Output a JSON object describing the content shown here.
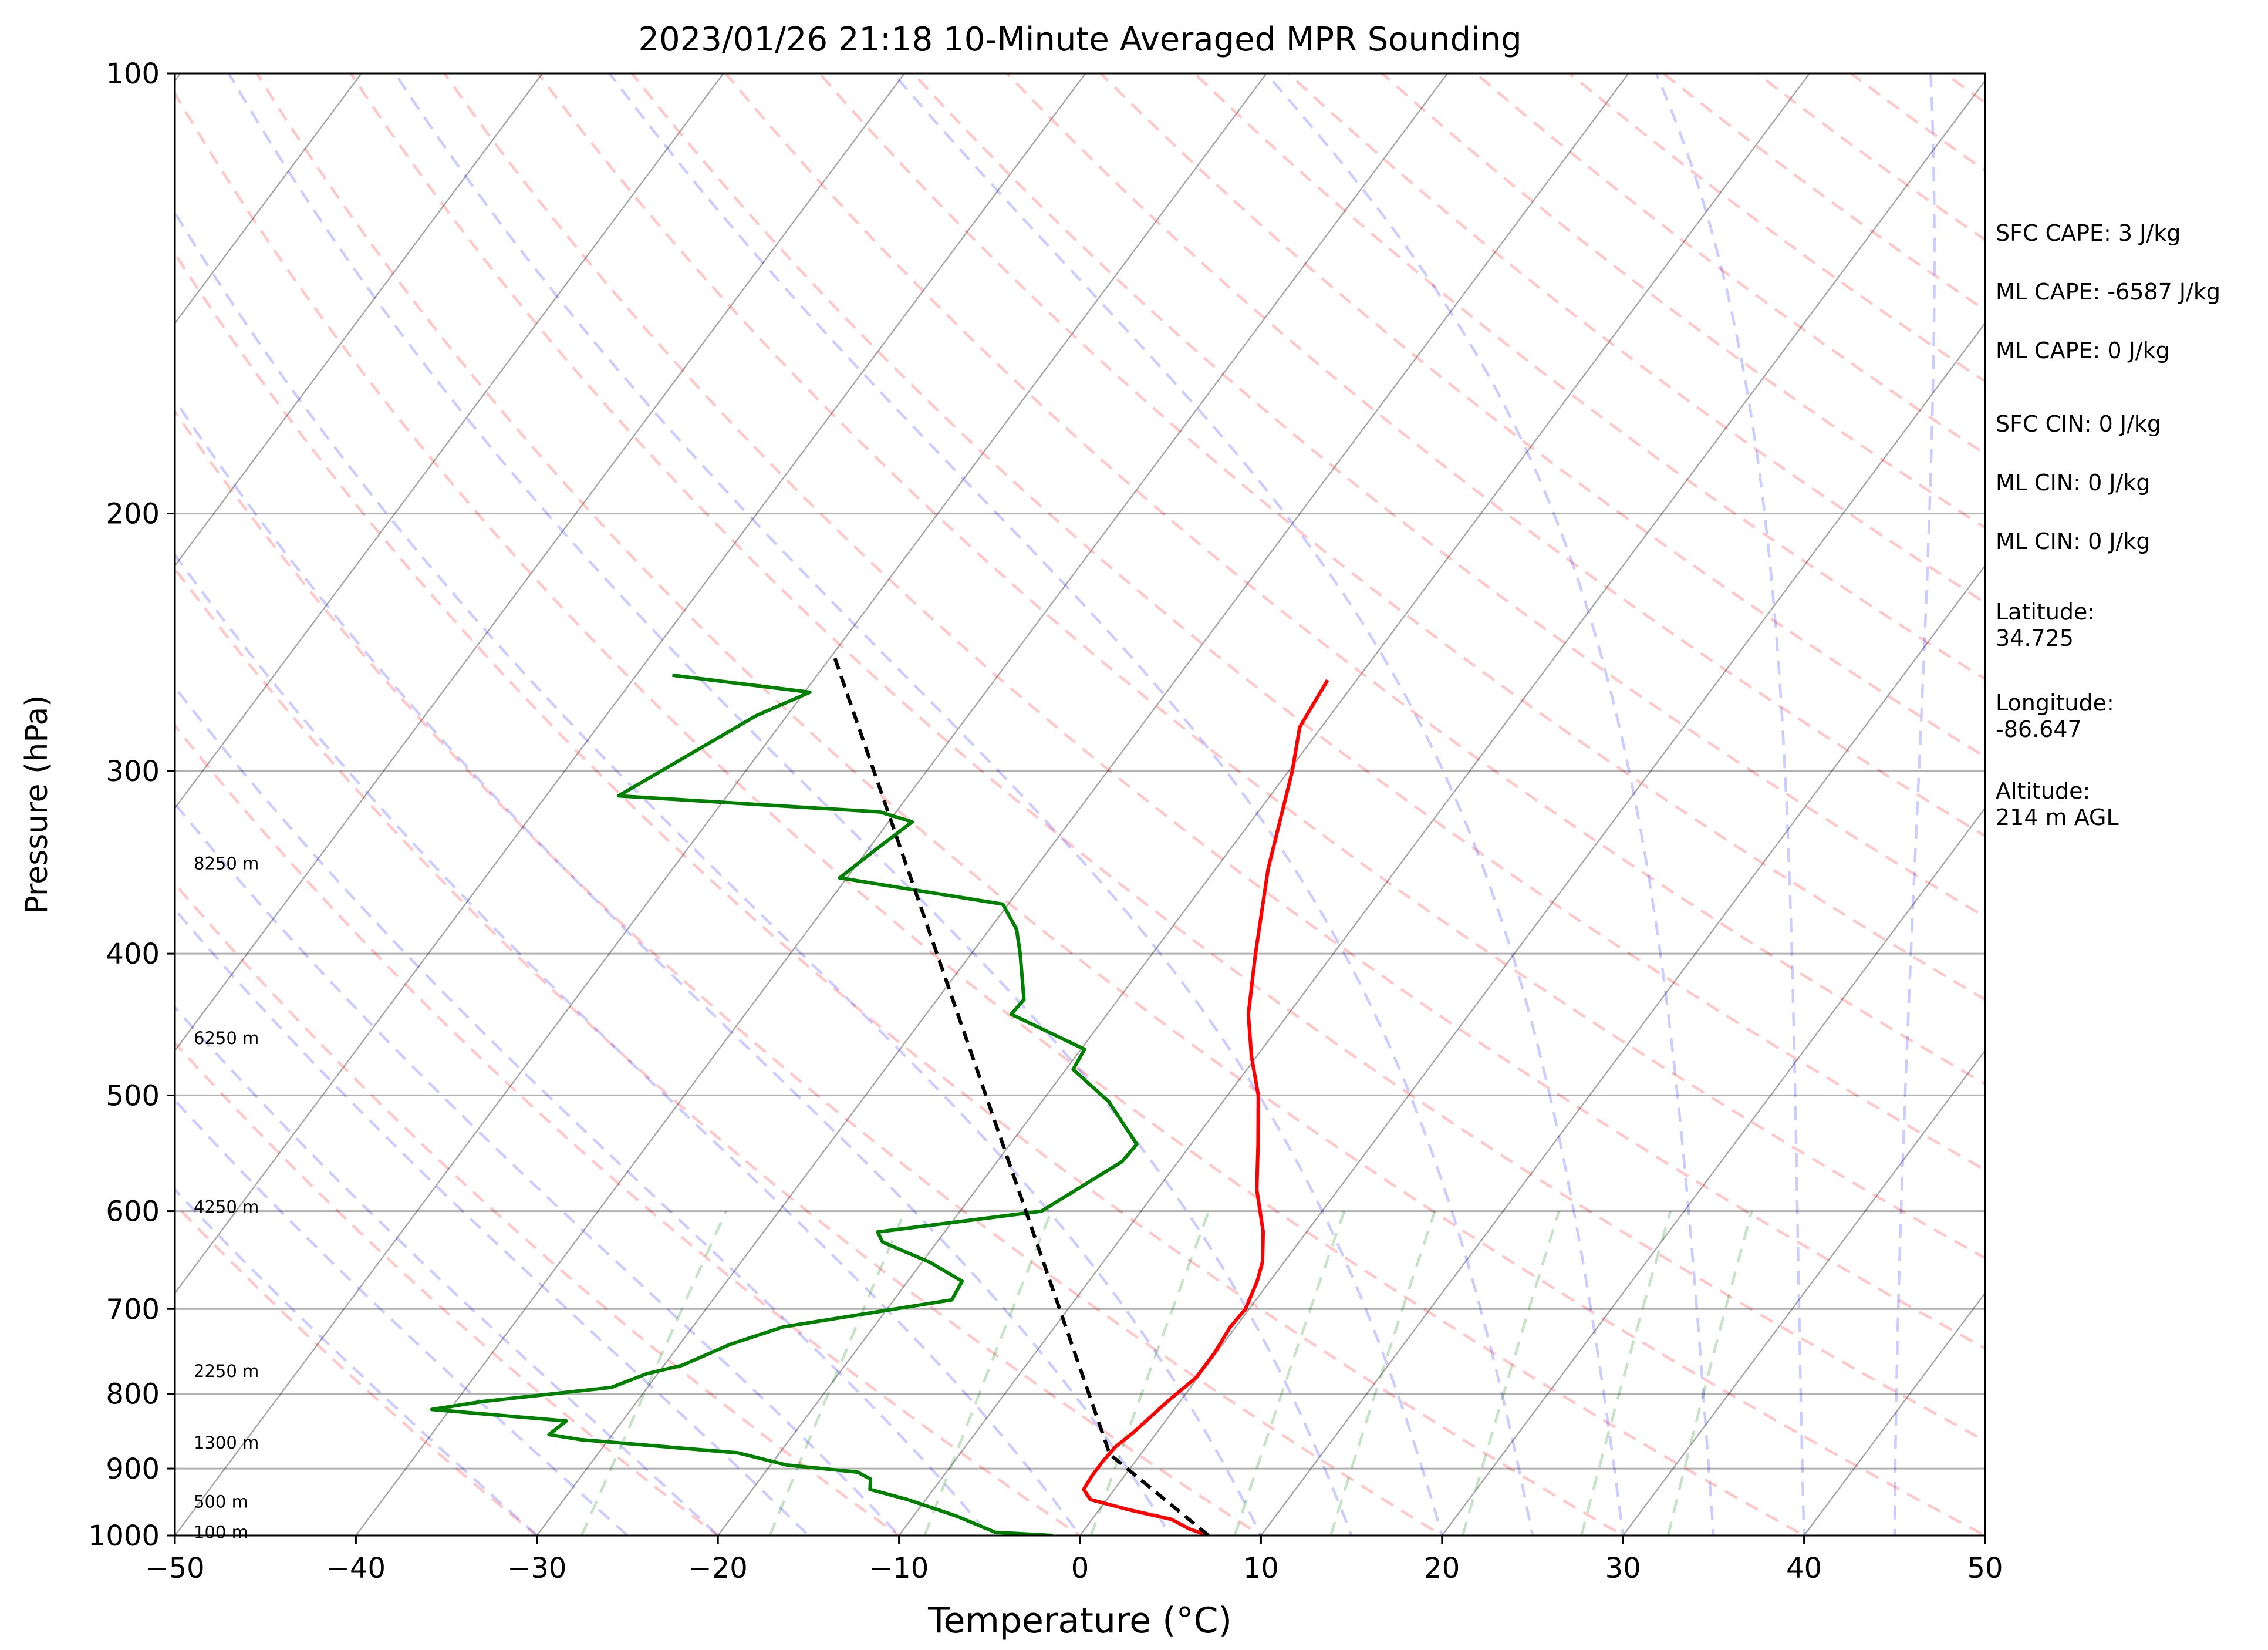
{
  "chart_data": {
    "type": "line",
    "title": "2023/01/26 21:18 10-Minute Averaged MPR Sounding",
    "xlabel": "Temperature (°C)",
    "ylabel": "Pressure (hPa)",
    "xlim": [
      -50,
      50
    ],
    "ylim": [
      1000,
      100
    ],
    "y_scale": "log",
    "skew": true,
    "grid": true,
    "x_ticks": [
      "−50",
      "−40",
      "−30",
      "−20",
      "−10",
      "0",
      "10",
      "20",
      "30",
      "40",
      "50"
    ],
    "x_tick_values": [
      -50,
      -40,
      -30,
      -20,
      -10,
      0,
      10,
      20,
      30,
      40,
      50
    ],
    "y_ticks": [
      "1000",
      "900",
      "800",
      "700",
      "600",
      "500",
      "400",
      "300",
      "200",
      "100"
    ],
    "y_tick_values": [
      1000,
      900,
      800,
      700,
      600,
      500,
      400,
      300,
      200,
      100
    ],
    "height_labels": [
      {
        "text": "100 m",
        "p": 995
      },
      {
        "text": "500 m",
        "p": 948
      },
      {
        "text": "1300 m",
        "p": 864
      },
      {
        "text": "2250 m",
        "p": 772
      },
      {
        "text": "4250 m",
        "p": 596
      },
      {
        "text": "6250 m",
        "p": 457
      },
      {
        "text": "8250 m",
        "p": 347
      }
    ],
    "annotations": [
      "SFC CAPE: 3 J/kg",
      "ML CAPE: -6587 J/kg",
      "ML CAPE: 0 J/kg",
      "SFC CIN: 0 J/kg",
      "ML CIN: 0 J/kg",
      "ML CIN: 0 J/kg",
      "Latitude:",
      "34.725",
      "Longitude:",
      "-86.647",
      "Altitude:",
      "214 m AGL"
    ],
    "series": [
      {
        "color": "#ff0000",
        "points": [
          [
            1000,
            7.1
          ],
          [
            990,
            5.8
          ],
          [
            975,
            4.4
          ],
          [
            960,
            1.6
          ],
          [
            945,
            -0.9
          ],
          [
            930,
            -1.7
          ],
          [
            910,
            -1.8
          ],
          [
            890,
            -1.8
          ],
          [
            870,
            -1.7
          ],
          [
            850,
            -1.3
          ],
          [
            830,
            -1.0
          ],
          [
            810,
            -0.7
          ],
          [
            780,
            -0.1
          ],
          [
            750,
            -0.1
          ],
          [
            720,
            -0.3
          ],
          [
            700,
            -0.2
          ],
          [
            670,
            -0.7
          ],
          [
            650,
            -1.2
          ],
          [
            620,
            -2.4
          ],
          [
            580,
            -4.5
          ],
          [
            540,
            -6.3
          ],
          [
            500,
            -8.3
          ],
          [
            470,
            -10.3
          ],
          [
            440,
            -12.2
          ],
          [
            400,
            -14.3
          ],
          [
            350,
            -17.1
          ],
          [
            300,
            -19.8
          ],
          [
            280,
            -21.2
          ],
          [
            260,
            -21.6
          ]
        ]
      },
      {
        "color": "#008000",
        "points": [
          [
            1000,
            -1.5
          ],
          [
            995,
            -4.8
          ],
          [
            970,
            -7.6
          ],
          [
            945,
            -11.0
          ],
          [
            930,
            -13.5
          ],
          [
            915,
            -13.9
          ],
          [
            905,
            -14.9
          ],
          [
            895,
            -19.1
          ],
          [
            878,
            -22.3
          ],
          [
            860,
            -31.5
          ],
          [
            853,
            -33.5
          ],
          [
            835,
            -33.1
          ],
          [
            820,
            -41.0
          ],
          [
            810,
            -38.6
          ],
          [
            792,
            -32.0
          ],
          [
            775,
            -30.6
          ],
          [
            765,
            -29.0
          ],
          [
            740,
            -27.2
          ],
          [
            720,
            -25.0
          ],
          [
            690,
            -16.8
          ],
          [
            670,
            -17.0
          ],
          [
            650,
            -19.6
          ],
          [
            630,
            -23.0
          ],
          [
            620,
            -23.7
          ],
          [
            600,
            -15.5
          ],
          [
            555,
            -13.1
          ],
          [
            540,
            -13.0
          ],
          [
            505,
            -16.3
          ],
          [
            480,
            -19.6
          ],
          [
            465,
            -19.8
          ],
          [
            440,
            -25.3
          ],
          [
            430,
            -25.2
          ],
          [
            400,
            -27.3
          ],
          [
            385,
            -28.5
          ],
          [
            370,
            -30.3
          ],
          [
            355,
            -40.4
          ],
          [
            340,
            -39.6
          ],
          [
            325,
            -38.7
          ],
          [
            320,
            -40.9
          ],
          [
            312,
            -56.0
          ],
          [
            275,
            -51.7
          ],
          [
            265,
            -49.7
          ],
          [
            258,
            -58.0
          ]
        ]
      },
      {
        "color": "#000000",
        "dashed": true,
        "points": [
          [
            1000,
            7.1
          ],
          [
            880,
            -1.7
          ],
          [
            250,
            -49.9
          ]
        ]
      }
    ]
  }
}
